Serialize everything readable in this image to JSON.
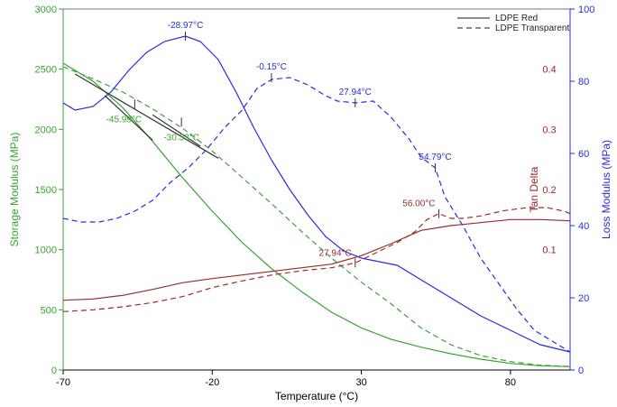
{
  "chart_data": {
    "type": "line",
    "xlabel": "Temperature (°C)",
    "ylabel_left": "Storage Modulus (MPa)",
    "ylabel_right1": "Tan Delta",
    "ylabel_right2": "Loss Modulus (MPa)",
    "xlim": [
      -70,
      100
    ],
    "x_ticks": [
      -70,
      -20,
      30,
      80
    ],
    "y_left": {
      "lim": [
        0,
        3000
      ],
      "ticks": [
        0,
        500,
        1000,
        1500,
        2000,
        2500,
        3000
      ],
      "color": "#3aa335"
    },
    "y_tan": {
      "lim": [
        -0.1,
        0.5
      ],
      "ticks": [
        0.1,
        0.2,
        0.3,
        0.4
      ],
      "color": "#9b2a2a"
    },
    "y_loss": {
      "lim": [
        0,
        100
      ],
      "ticks": [
        0,
        20,
        40,
        60,
        80,
        100
      ],
      "color": "#2a2ae0"
    },
    "legend": [
      {
        "label": "LDPE Red",
        "style": "solid"
      },
      {
        "label": "LDPE Transparent",
        "style": "dashed"
      }
    ],
    "series": [
      {
        "sample": "LDPE Red",
        "measure": "Storage Modulus",
        "axis": "left",
        "color": "#3aa335",
        "style": "solid",
        "x": [
          -70,
          -60,
          -50,
          -40,
          -30,
          -20,
          -10,
          0,
          10,
          20,
          30,
          40,
          50,
          60,
          70,
          80,
          90,
          100
        ],
        "y": [
          2550,
          2400,
          2180,
          1900,
          1600,
          1320,
          1060,
          840,
          650,
          480,
          350,
          255,
          190,
          135,
          90,
          55,
          35,
          28
        ]
      },
      {
        "sample": "LDPE Transparent",
        "measure": "Storage Modulus",
        "axis": "left",
        "color": "#3aa335",
        "style": "dashed",
        "x": [
          -70,
          -60,
          -50,
          -40,
          -30,
          -20,
          -10,
          0,
          10,
          20,
          30,
          40,
          50,
          60,
          70,
          80,
          90,
          100
        ],
        "y": [
          2520,
          2420,
          2310,
          2170,
          2010,
          1820,
          1600,
          1380,
          1150,
          930,
          730,
          550,
          350,
          210,
          120,
          70,
          40,
          30
        ]
      },
      {
        "sample": "LDPE Red",
        "measure": "Loss Modulus",
        "axis": "loss",
        "color": "#2a2ae0",
        "style": "solid",
        "x": [
          -70,
          -66,
          -60,
          -54,
          -48,
          -42,
          -36,
          -29,
          -24,
          -18,
          -12,
          -6,
          0,
          6,
          12,
          18,
          24,
          30,
          36,
          42,
          50,
          60,
          70,
          80,
          90,
          100
        ],
        "y": [
          74,
          72,
          73,
          77,
          83,
          88,
          91,
          92.5,
          91,
          86,
          77,
          67,
          58,
          50,
          43,
          37,
          33,
          31,
          30,
          29,
          25,
          20,
          15,
          11,
          7,
          5
        ]
      },
      {
        "sample": "LDPE Transparent",
        "measure": "Loss Modulus",
        "axis": "loss",
        "color": "#2a2ae0",
        "style": "dashed",
        "x": [
          -70,
          -64,
          -58,
          -52,
          -46,
          -40,
          -34,
          -28,
          -22,
          -16,
          -10,
          -5,
          0,
          6,
          12,
          18,
          22,
          28,
          34,
          40,
          46,
          50,
          54.79,
          58,
          64,
          70,
          76,
          82,
          88,
          94,
          100
        ],
        "y": [
          42,
          41,
          41,
          42,
          44,
          47,
          52,
          56,
          61,
          67,
          72,
          78,
          80.5,
          81,
          79,
          76,
          74.5,
          74,
          74.5,
          70,
          64,
          59,
          56,
          48,
          40,
          31,
          24,
          17,
          11,
          8,
          5
        ]
      },
      {
        "sample": "LDPE Red",
        "measure": "Tan Delta",
        "axis": "tan",
        "color": "#9b2a2a",
        "style": "solid",
        "x": [
          -70,
          -60,
          -50,
          -40,
          -30,
          -20,
          -10,
          0,
          10,
          20,
          30,
          40,
          50,
          60,
          70,
          80,
          90,
          100
        ],
        "y": [
          0.016,
          0.018,
          0.024,
          0.034,
          0.045,
          0.052,
          0.058,
          0.064,
          0.07,
          0.076,
          0.09,
          0.11,
          0.132,
          0.14,
          0.145,
          0.15,
          0.15,
          0.148
        ]
      },
      {
        "sample": "LDPE Transparent",
        "measure": "Tan Delta",
        "axis": "tan",
        "color": "#9b2a2a",
        "style": "dashed",
        "x": [
          -70,
          -60,
          -50,
          -40,
          -30,
          -20,
          -10,
          0,
          10,
          20,
          27.94,
          35,
          42,
          48,
          52,
          56,
          60,
          64,
          70,
          78,
          86,
          92,
          98,
          100
        ],
        "y": [
          -0.003,
          0.0,
          0.005,
          0.012,
          0.022,
          0.037,
          0.048,
          0.058,
          0.065,
          0.07,
          0.078,
          0.095,
          0.112,
          0.13,
          0.15,
          0.16,
          0.152,
          0.152,
          0.156,
          0.165,
          0.17,
          0.17,
          0.164,
          0.16
        ]
      },
      {
        "sample": "LDPE Red",
        "measure": "Storage Modulus tangent",
        "axis": "left",
        "color": "#333333",
        "style": "solid",
        "x": [
          -66,
          -18
        ],
        "y": [
          2460,
          1760
        ]
      },
      {
        "sample": "LDPE Red",
        "measure": "Storage Modulus tangent",
        "axis": "left",
        "color": "#333333",
        "style": "solid",
        "x": [
          -56,
          -40
        ],
        "y": [
          2280,
          1910
        ]
      },
      {
        "sample": "LDPE Red",
        "measure": "Storage Modulus tangent",
        "axis": "left",
        "color": "#333333",
        "style": "solid",
        "x": [
          -40,
          -24
        ],
        "y": [
          2120,
          1860
        ]
      }
    ],
    "annotations": [
      {
        "text": "-28.97°C",
        "x": -29,
        "y": 92.5,
        "axis": "loss",
        "color": "#2a2ae0"
      },
      {
        "text": "-0.15°C",
        "x": -0.15,
        "y": 81,
        "axis": "loss",
        "color": "#2a2ae0"
      },
      {
        "text": "27.94°C",
        "x": 27.94,
        "y": 74,
        "axis": "loss",
        "color": "#2a2ae0"
      },
      {
        "text": "54.79°C",
        "x": 54.79,
        "y": 56,
        "axis": "loss",
        "color": "#2a2ae0"
      },
      {
        "text": "-30.33°C",
        "x": -30.33,
        "y": 2060,
        "axis": "left",
        "color": "#3aa335"
      },
      {
        "text": "-45.99°C",
        "x": -45.99,
        "y": 2210,
        "axis": "left",
        "color": "#3aa335"
      },
      {
        "text": "56.00°C",
        "x": 56.0,
        "y": 0.16,
        "axis": "tan",
        "color": "#9b2a2a"
      },
      {
        "text": "27.94°C",
        "x": 27.94,
        "y": 0.078,
        "axis": "tan",
        "color": "#9b2a2a"
      }
    ]
  }
}
